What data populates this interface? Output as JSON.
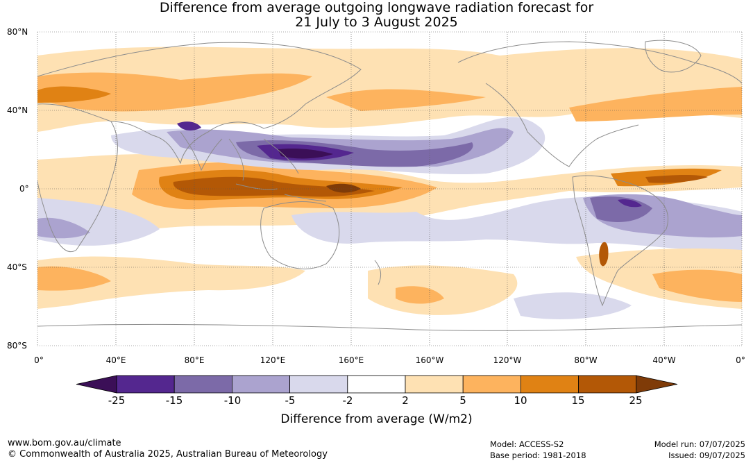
{
  "title_line1": "Difference from average outgoing longwave radiation forecast for",
  "title_line2": "21 July to 3 August 2025",
  "lat_labels": [
    "80°N",
    "40°N",
    "0°",
    "40°S",
    "80°S"
  ],
  "lon_labels": [
    "0°",
    "40°E",
    "80°E",
    "120°E",
    "160°E",
    "160°W",
    "120°W",
    "80°W",
    "40°W",
    "0°"
  ],
  "colorbar": {
    "ticks": [
      "-25",
      "-15",
      "-10",
      "-5",
      "-2",
      "2",
      "5",
      "10",
      "15",
      "25"
    ],
    "colors": [
      "#3b0f57",
      "#54278f",
      "#7c6aa8",
      "#aba3cf",
      "#d9d9ec",
      "#ffffff",
      "#fee1b3",
      "#fdb35e",
      "#e08214",
      "#b35806",
      "#7f3b08"
    ],
    "title": "Difference from average (W/m2)"
  },
  "footer": {
    "website": "www.bom.gov.au/climate",
    "copyright": "© Commonwealth of Australia 2025, Australian Bureau of Meteorology",
    "model": "Model: ACCESS-S2",
    "base_period": "Base period: 1981-2018",
    "model_run": "Model run: 07/07/2025",
    "issued": "Issued: 09/07/2025"
  }
}
